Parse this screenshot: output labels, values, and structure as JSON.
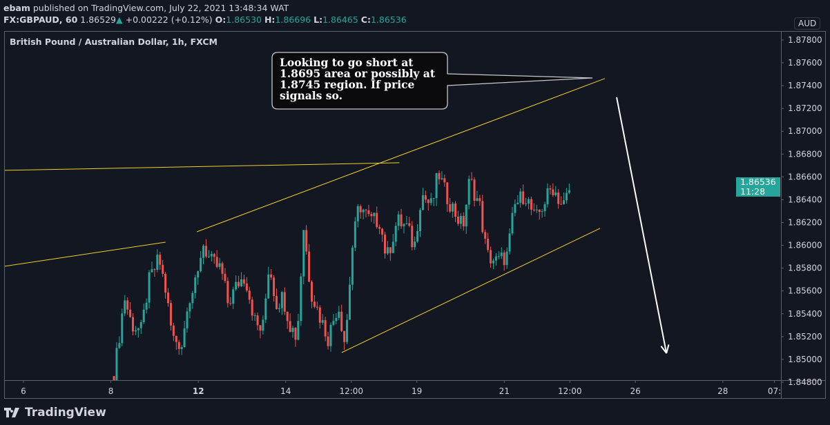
{
  "header": {
    "author": "ebam",
    "published_text": "published on TradingView.com, July 22, 2021 13:48:34 WAT",
    "symbol": "FX:GBPAUD, 60",
    "last": "1.86529",
    "change": "+0.00222 (+0.12%)",
    "o_label": "O:",
    "open": "1.86530",
    "h_label": "H:",
    "high": "1.86696",
    "l_label": "L:",
    "low": "1.86465",
    "c_label": "C:",
    "close": "1.86536"
  },
  "chart_title": "British Pound / Australian Dollar, 1h, FXCM",
  "currency_badge": "AUD",
  "price_tag": {
    "price": "1.86536",
    "countdown": "11:28"
  },
  "callout_text": "Looking to go short at 1.8695 area or possibly at 1.8745 region. If price signals so.",
  "brand": "TradingView",
  "colors": {
    "background": "#131722",
    "up": "#26a69a",
    "down": "#ef5350",
    "trendline": "#f0d020",
    "arrow": "#ffffff"
  },
  "chart_data": {
    "type": "candlestick",
    "title": "British Pound / Australian Dollar, 1h, FXCM",
    "y_ticks": [
      "1.84800",
      "1.85000",
      "1.85200",
      "1.85400",
      "1.85600",
      "1.85800",
      "1.86000",
      "1.86200",
      "1.86400",
      "1.86600",
      "1.86800",
      "1.87000",
      "1.87200",
      "1.87400",
      "1.87600",
      "1.87800"
    ],
    "y_tick_values": [
      1.848,
      1.85,
      1.852,
      1.854,
      1.856,
      1.858,
      1.86,
      1.862,
      1.864,
      1.866,
      1.868,
      1.87,
      1.872,
      1.874,
      1.876,
      1.878
    ],
    "x_ticks": [
      {
        "label": "6",
        "t": 0
      },
      {
        "label": "8",
        "t": 2
      },
      {
        "label": "12",
        "t": 4
      },
      {
        "label": "14",
        "t": 6
      },
      {
        "label": "12:00",
        "t": 7.5
      },
      {
        "label": "19",
        "t": 9
      },
      {
        "label": "21",
        "t": 11
      },
      {
        "label": "12:00",
        "t": 12.5
      },
      {
        "label": "26",
        "t": 14
      },
      {
        "label": "28",
        "t": 16
      },
      {
        "label": "07:",
        "t": 17.18
      }
    ],
    "x_unit": "trading days since July 6",
    "price_path": [
      [
        2.07,
        1.84854
      ],
      [
        2.31,
        1.8555
      ],
      [
        2.47,
        1.85308
      ],
      [
        2.7,
        1.85248
      ],
      [
        2.86,
        1.85671
      ],
      [
        3.1,
        1.85883
      ],
      [
        3.25,
        1.85611
      ],
      [
        3.41,
        1.85187
      ],
      [
        3.65,
        1.85127
      ],
      [
        3.73,
        1.8549
      ],
      [
        3.97,
        1.85671
      ],
      [
        4.09,
        1.86034
      ],
      [
        4.28,
        1.85853
      ],
      [
        4.52,
        1.85792
      ],
      [
        4.68,
        1.8549
      ],
      [
        4.91,
        1.85671
      ],
      [
        5.07,
        1.85732
      ],
      [
        5.31,
        1.85308
      ],
      [
        5.47,
        1.85248
      ],
      [
        5.62,
        1.85853
      ],
      [
        5.78,
        1.8549
      ],
      [
        5.94,
        1.8555
      ],
      [
        6.1,
        1.85308
      ],
      [
        6.26,
        1.85187
      ],
      [
        6.41,
        1.86155
      ],
      [
        6.57,
        1.85611
      ],
      [
        6.73,
        1.85429
      ],
      [
        6.97,
        1.85187
      ],
      [
        7.2,
        1.8549
      ],
      [
        7.36,
        1.85127
      ],
      [
        7.52,
        1.85974
      ],
      [
        7.68,
        1.86367
      ],
      [
        7.92,
        1.86216
      ],
      [
        8.15,
        1.86216
      ],
      [
        8.31,
        1.85883
      ],
      [
        8.55,
        1.86216
      ],
      [
        8.78,
        1.86155
      ],
      [
        8.94,
        1.85974
      ],
      [
        9.1,
        1.86458
      ],
      [
        9.34,
        1.86337
      ],
      [
        9.49,
        1.86639
      ],
      [
        9.65,
        1.86458
      ],
      [
        9.89,
        1.86276
      ],
      [
        10.05,
        1.86155
      ],
      [
        10.21,
        1.86579
      ],
      [
        10.44,
        1.86337
      ],
      [
        10.6,
        1.85913
      ],
      [
        10.84,
        1.85853
      ],
      [
        11.07,
        1.85913
      ],
      [
        11.23,
        1.86337
      ],
      [
        11.47,
        1.86458
      ],
      [
        11.71,
        1.86216
      ],
      [
        11.94,
        1.86397
      ],
      [
        12.1,
        1.86518
      ],
      [
        12.34,
        1.86337
      ],
      [
        12.54,
        1.86536
      ]
    ],
    "drawings": [
      {
        "kind": "trendline",
        "points": [
          [
            -0.44,
            1.86657
          ],
          [
            8.6,
            1.86724
          ]
        ]
      },
      {
        "kind": "trendline",
        "points": [
          [
            -0.44,
            1.85816
          ],
          [
            3.25,
            1.86028
          ]
        ]
      },
      {
        "kind": "trendline",
        "points": [
          [
            3.97,
            1.86119
          ],
          [
            13.3,
            1.87462
          ]
        ]
      },
      {
        "kind": "trendline",
        "points": [
          [
            7.28,
            1.8506
          ],
          [
            13.19,
            1.86149
          ]
        ]
      },
      {
        "kind": "arrow",
        "points": [
          [
            13.57,
            1.87299
          ],
          [
            14.71,
            1.85054
          ]
        ]
      }
    ],
    "y_range": [
      1.8478,
      1.8787
    ]
  }
}
